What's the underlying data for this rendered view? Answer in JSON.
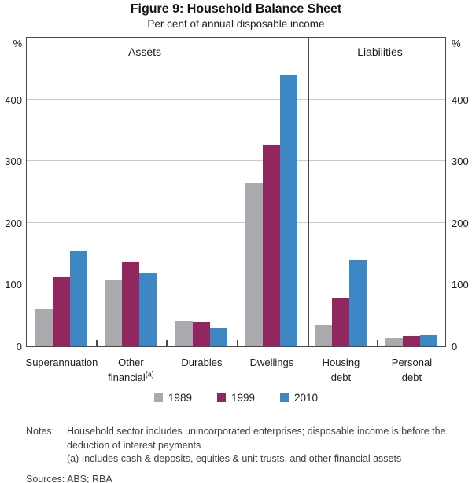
{
  "figure": {
    "title": "Figure 9: Household Balance Sheet",
    "subtitle": "Per cent of annual disposable income"
  },
  "chart_data": {
    "type": "bar",
    "title": "Figure 9: Household Balance Sheet",
    "subtitle": "Per cent of annual disposable income",
    "unit": "%",
    "ylim": [
      0,
      500
    ],
    "yticks": [
      0,
      100,
      200,
      300,
      400
    ],
    "grid": true,
    "legend_position": "bottom",
    "sections": [
      {
        "label": "Assets"
      },
      {
        "label": "Liabilities"
      }
    ],
    "categories": [
      {
        "name": "Superannuation",
        "lines": [
          "Superannuation"
        ],
        "section": "Assets"
      },
      {
        "name": "Other financial",
        "lines": [
          "Other",
          "financial"
        ],
        "footnote": "(a)",
        "section": "Assets"
      },
      {
        "name": "Durables",
        "lines": [
          "Durables"
        ],
        "section": "Assets"
      },
      {
        "name": "Dwellings",
        "lines": [
          "Dwellings"
        ],
        "section": "Assets"
      },
      {
        "name": "Housing debt",
        "lines": [
          "Housing",
          "debt"
        ],
        "section": "Liabilities"
      },
      {
        "name": "Personal debt",
        "lines": [
          "Personal",
          "debt"
        ],
        "section": "Liabilities"
      }
    ],
    "series": [
      {
        "name": "1989",
        "color": "#a9aaad",
        "values": [
          60,
          107,
          41,
          265,
          34,
          14
        ]
      },
      {
        "name": "1999",
        "color": "#92275f",
        "values": [
          112,
          138,
          39,
          327,
          77,
          16
        ]
      },
      {
        "name": "2010",
        "color": "#3d87c5",
        "values": [
          155,
          120,
          29,
          440,
          140,
          18
        ]
      }
    ]
  },
  "notes": {
    "label": "Notes:",
    "lines": [
      "Household sector includes unincorporated enterprises; disposable income is before the",
      "deduction of interest payments",
      "(a) Includes cash & deposits, equities & unit trusts, and other financial assets"
    ],
    "sources_label": "Sources:",
    "sources": "ABS; RBA"
  }
}
